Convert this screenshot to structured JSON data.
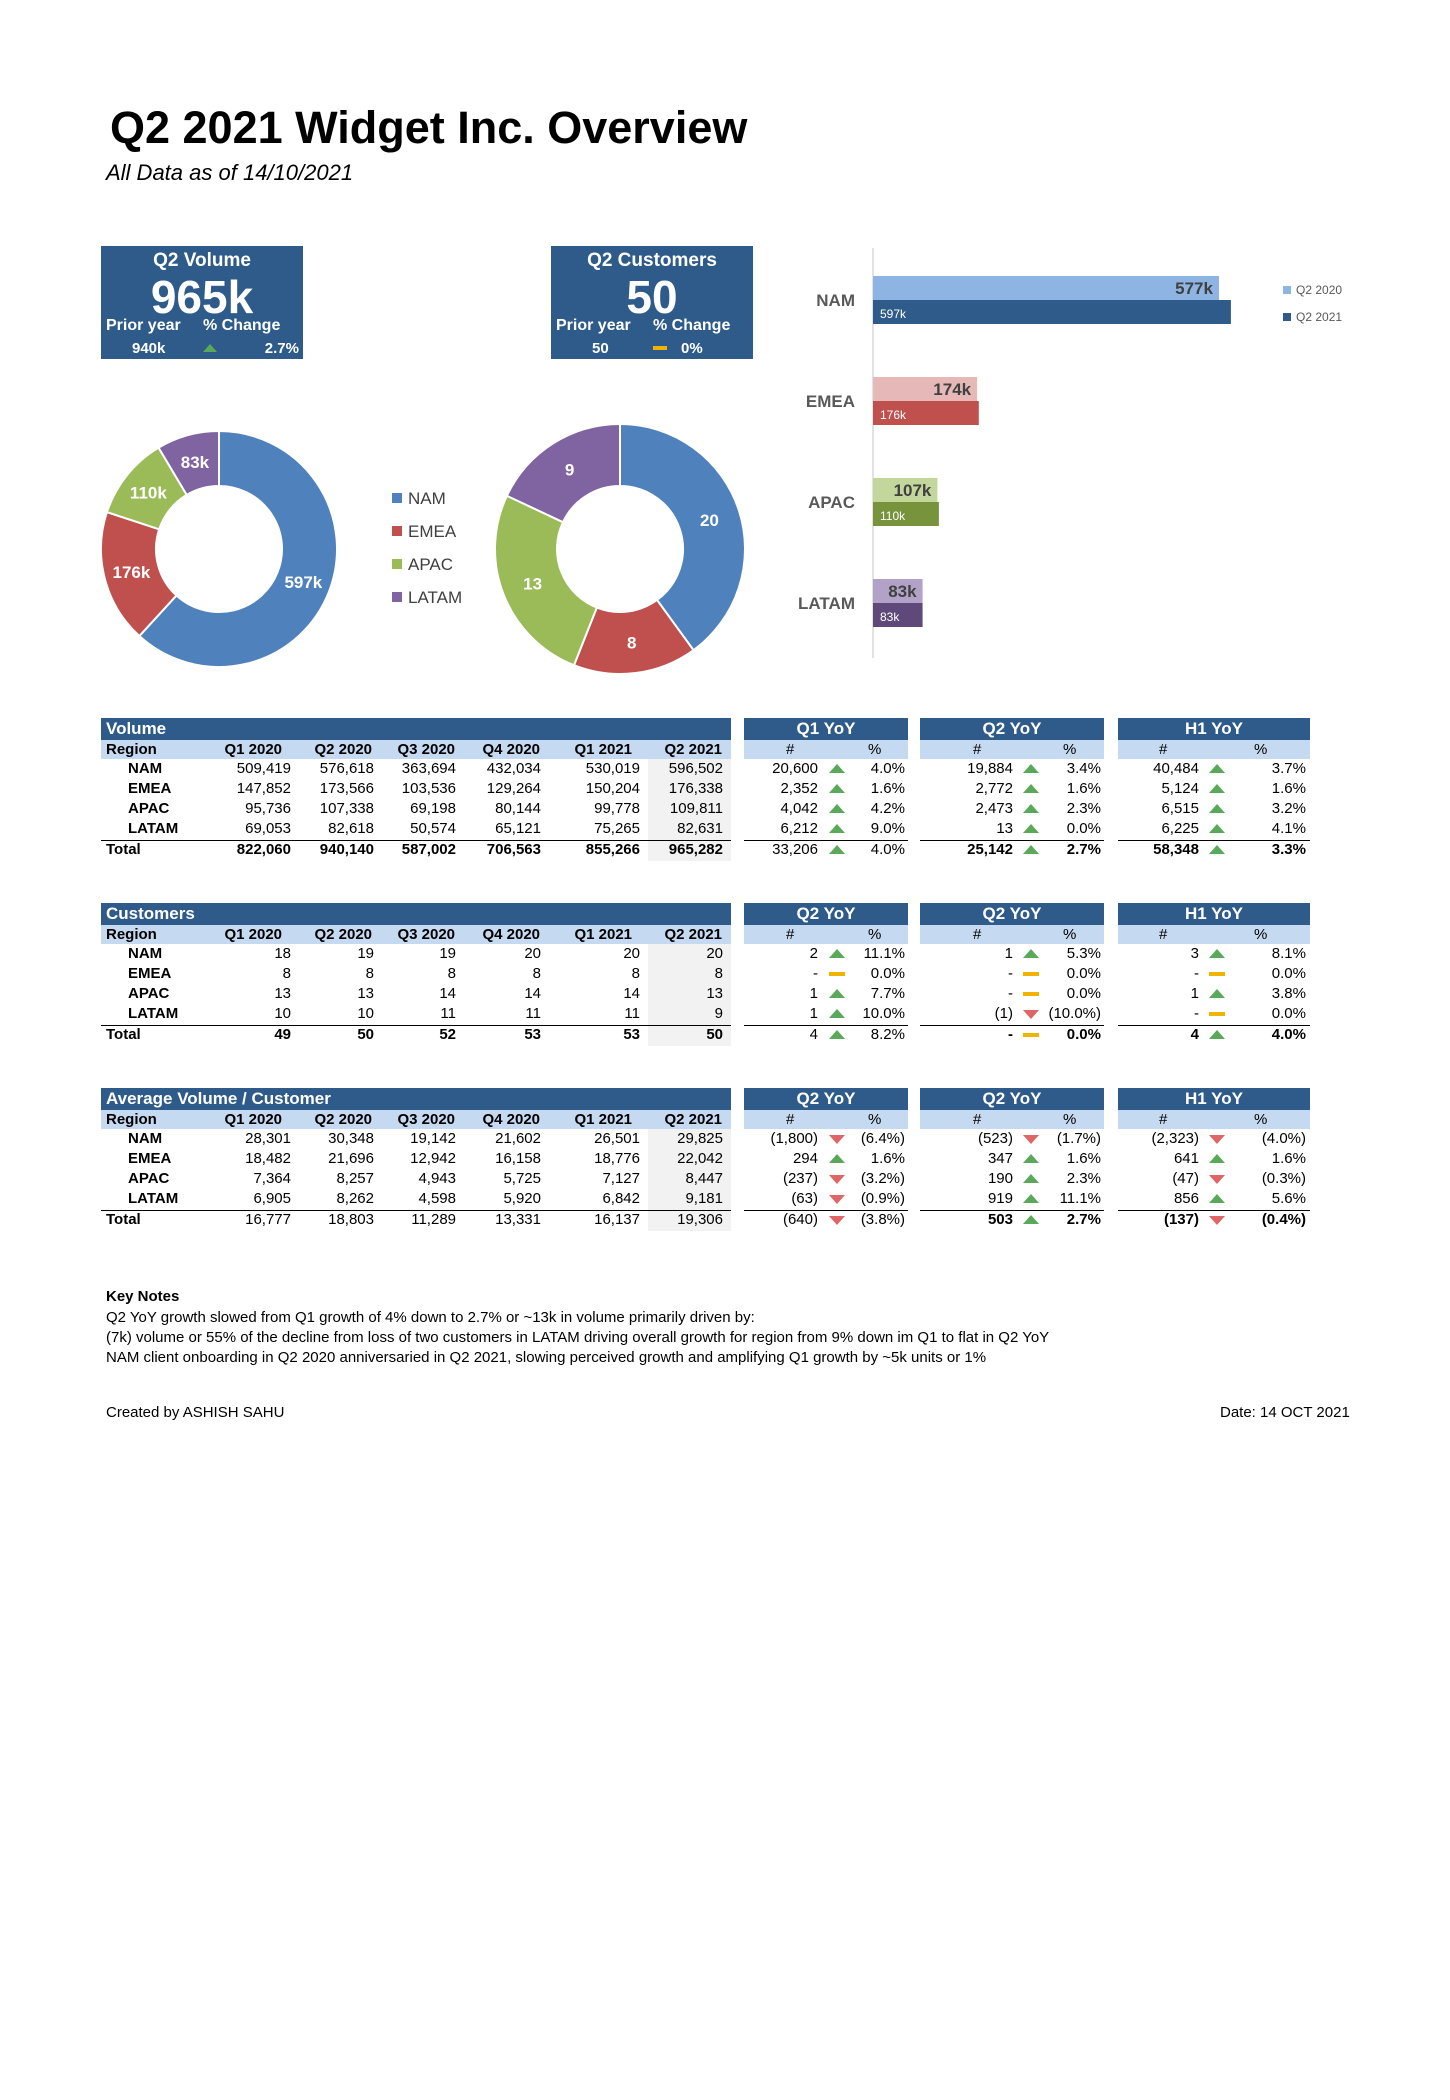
{
  "title": "Q2 2021 Widget Inc. Overview",
  "subtitle": "All Data as of 14/10/2021",
  "colors": {
    "header": "#2e5b8a",
    "subheader": "#c5d9f0",
    "NAM": "#4f81bd",
    "EMEA": "#c0504d",
    "APAC": "#9bbb59",
    "LATAM": "#8064a2",
    "up": "#5aa85a",
    "down": "#e06666",
    "flat": "#f0b400"
  },
  "kpi_volume": {
    "title": "Q2 Volume",
    "value": "965k",
    "prior_label": "Prior year",
    "change_label": "% Change",
    "prior_value": "940k",
    "change_value": "2.7%",
    "change_icon": "up"
  },
  "kpi_customers": {
    "title": "Q2 Customers",
    "value": "50",
    "prior_label": "Prior year",
    "change_label": "% Change",
    "prior_value": "50",
    "change_value": "0%",
    "change_icon": "flat"
  },
  "chart_data": [
    {
      "type": "pie",
      "variant": "donut",
      "categories": [
        "NAM",
        "EMEA",
        "APAC",
        "LATAM"
      ],
      "values": [
        596502,
        176338,
        109811,
        82631
      ],
      "labels": [
        "597k",
        "176k",
        "110k",
        "83k"
      ]
    },
    {
      "type": "pie",
      "variant": "donut",
      "categories": [
        "NAM",
        "EMEA",
        "APAC",
        "LATAM"
      ],
      "values": [
        20,
        8,
        13,
        9
      ],
      "labels": [
        "20",
        "8",
        "13",
        "9"
      ]
    },
    {
      "type": "bar",
      "orientation": "horizontal",
      "categories": [
        "NAM",
        "EMEA",
        "APAC",
        "LATAM"
      ],
      "series": [
        {
          "name": "Q2 2020",
          "values": [
            576618,
            173566,
            107338,
            82618
          ],
          "labels": [
            "577k",
            "174k",
            "107k",
            "83k"
          ]
        },
        {
          "name": "Q2 2021",
          "values": [
            596502,
            176338,
            109811,
            82631
          ],
          "labels": [
            "597k",
            "176k",
            "110k",
            "83k"
          ]
        }
      ],
      "legend": "right"
    }
  ],
  "legend_items": [
    "NAM",
    "EMEA",
    "APAC",
    "LATAM"
  ],
  "tables": [
    {
      "id": "volume",
      "title": "Volume",
      "columns": [
        "Region",
        "Q1 2020",
        "Q2 2020",
        "Q3 2020",
        "Q4 2020",
        "Q1 2021",
        "Q2 2021"
      ],
      "rows": [
        [
          "NAM",
          "509,419",
          "576,618",
          "363,694",
          "432,034",
          "530,019",
          "596,502"
        ],
        [
          "EMEA",
          "147,852",
          "173,566",
          "103,536",
          "129,264",
          "150,204",
          "176,338"
        ],
        [
          "APAC",
          "95,736",
          "107,338",
          "69,198",
          "80,144",
          "99,778",
          "109,811"
        ],
        [
          "LATAM",
          "69,053",
          "82,618",
          "50,574",
          "65,121",
          "75,265",
          "82,631"
        ]
      ],
      "total": [
        "Total",
        "822,060",
        "940,140",
        "587,002",
        "706,563",
        "855,266",
        "965,282"
      ],
      "yoy": [
        {
          "title": "Q1 YoY",
          "num_label": "#",
          "pct_label": "%",
          "total_bold": false,
          "rows": [
            [
              "20,600",
              "up",
              "4.0%"
            ],
            [
              "2,352",
              "up",
              "1.6%"
            ],
            [
              "4,042",
              "up",
              "4.2%"
            ],
            [
              "6,212",
              "up",
              "9.0%"
            ]
          ],
          "total": [
            "33,206",
            "up",
            "4.0%"
          ]
        },
        {
          "title": "Q2 YoY",
          "num_label": "#",
          "pct_label": "%",
          "total_bold": true,
          "rows": [
            [
              "19,884",
              "up",
              "3.4%"
            ],
            [
              "2,772",
              "up",
              "1.6%"
            ],
            [
              "2,473",
              "up",
              "2.3%"
            ],
            [
              "13",
              "up",
              "0.0%"
            ]
          ],
          "total": [
            "25,142",
            "up",
            "2.7%"
          ]
        },
        {
          "title": "H1 YoY",
          "num_label": "#",
          "pct_label": "%",
          "total_bold": true,
          "rows": [
            [
              "40,484",
              "up",
              "3.7%"
            ],
            [
              "5,124",
              "up",
              "1.6%"
            ],
            [
              "6,515",
              "up",
              "3.2%"
            ],
            [
              "6,225",
              "up",
              "4.1%"
            ]
          ],
          "total": [
            "58,348",
            "up",
            "3.3%"
          ]
        }
      ]
    },
    {
      "id": "customers",
      "title": "Customers",
      "columns": [
        "Region",
        "Q1 2020",
        "Q2 2020",
        "Q3 2020",
        "Q4 2020",
        "Q1 2021",
        "Q2 2021"
      ],
      "rows": [
        [
          "NAM",
          "18",
          "19",
          "19",
          "20",
          "20",
          "20"
        ],
        [
          "EMEA",
          "8",
          "8",
          "8",
          "8",
          "8",
          "8"
        ],
        [
          "APAC",
          "13",
          "13",
          "14",
          "14",
          "14",
          "13"
        ],
        [
          "LATAM",
          "10",
          "10",
          "11",
          "11",
          "11",
          "9"
        ]
      ],
      "total": [
        "Total",
        "49",
        "50",
        "52",
        "53",
        "53",
        "50"
      ],
      "yoy": [
        {
          "title": "Q2 YoY",
          "num_label": "#",
          "pct_label": "%",
          "total_bold": false,
          "rows": [
            [
              "2",
              "up",
              "11.1%"
            ],
            [
              "-",
              "flat",
              "0.0%"
            ],
            [
              "1",
              "up",
              "7.7%"
            ],
            [
              "1",
              "up",
              "10.0%"
            ]
          ],
          "total": [
            "4",
            "up",
            "8.2%"
          ]
        },
        {
          "title": "Q2 YoY",
          "num_label": "#",
          "pct_label": "%",
          "total_bold": true,
          "rows": [
            [
              "1",
              "up",
              "5.3%"
            ],
            [
              "-",
              "flat",
              "0.0%"
            ],
            [
              "-",
              "flat",
              "0.0%"
            ],
            [
              "(1)",
              "down",
              "(10.0%)"
            ]
          ],
          "total": [
            "-",
            "flat",
            "0.0%"
          ]
        },
        {
          "title": "H1 YoY",
          "num_label": "#",
          "pct_label": "%",
          "total_bold": true,
          "rows": [
            [
              "3",
              "up",
              "8.1%"
            ],
            [
              "-",
              "flat",
              "0.0%"
            ],
            [
              "1",
              "up",
              "3.8%"
            ],
            [
              "-",
              "flat",
              "0.0%"
            ]
          ],
          "total": [
            "4",
            "up",
            "4.0%"
          ]
        }
      ]
    },
    {
      "id": "avg",
      "title": "Average Volume / Customer",
      "columns": [
        "Region",
        "Q1 2020",
        "Q2 2020",
        "Q3 2020",
        "Q4 2020",
        "Q1 2021",
        "Q2 2021"
      ],
      "rows": [
        [
          "NAM",
          "28,301",
          "30,348",
          "19,142",
          "21,602",
          "26,501",
          "29,825"
        ],
        [
          "EMEA",
          "18,482",
          "21,696",
          "12,942",
          "16,158",
          "18,776",
          "22,042"
        ],
        [
          "APAC",
          "7,364",
          "8,257",
          "4,943",
          "5,725",
          "7,127",
          "8,447"
        ],
        [
          "LATAM",
          "6,905",
          "8,262",
          "4,598",
          "5,920",
          "6,842",
          "9,181"
        ]
      ],
      "total": [
        "Total",
        "16,777",
        "18,803",
        "11,289",
        "13,331",
        "16,137",
        "19,306"
      ],
      "total_values_bold": false,
      "yoy": [
        {
          "title": "Q2 YoY",
          "num_label": "#",
          "pct_label": "%",
          "total_bold": false,
          "rows": [
            [
              "(1,800)",
              "down",
              "(6.4%)"
            ],
            [
              "294",
              "up",
              "1.6%"
            ],
            [
              "(237)",
              "down",
              "(3.2%)"
            ],
            [
              "(63)",
              "down",
              "(0.9%)"
            ]
          ],
          "total": [
            "(640)",
            "down",
            "(3.8%)"
          ]
        },
        {
          "title": "Q2 YoY",
          "num_label": "#",
          "pct_label": "%",
          "total_bold": true,
          "rows": [
            [
              "(523)",
              "down",
              "(1.7%)"
            ],
            [
              "347",
              "up",
              "1.6%"
            ],
            [
              "190",
              "up",
              "2.3%"
            ],
            [
              "919",
              "up",
              "11.1%"
            ]
          ],
          "total": [
            "503",
            "up",
            "2.7%"
          ]
        },
        {
          "title": "H1 YoY",
          "num_label": "#",
          "pct_label": "%",
          "total_bold": true,
          "rows": [
            [
              "(2,323)",
              "down",
              "(4.0%)"
            ],
            [
              "641",
              "up",
              "1.6%"
            ],
            [
              "(47)",
              "down",
              "(0.3%)"
            ],
            [
              "856",
              "up",
              "5.6%"
            ]
          ],
          "total": [
            "(137)",
            "down",
            "(0.4%)"
          ]
        }
      ]
    }
  ],
  "notes": {
    "title": "Key Notes",
    "lines": [
      "Q2 YoY growth slowed from Q1 growth of 4% down to 2.7% or ~13k in volume primarily driven by:",
      "(7k) volume or 55% of the decline from loss of two customers in LATAM driving overall growth for region from 9% down im Q1 to flat in Q2 YoY",
      "NAM client onboarding in Q2 2020 anniversaried in Q2 2021, slowing perceived growth and amplifying Q1 growth by ~5k units or 1%"
    ]
  },
  "footer": {
    "created": "Created by ASHISH SAHU",
    "date": "Date:  14 OCT 2021"
  }
}
